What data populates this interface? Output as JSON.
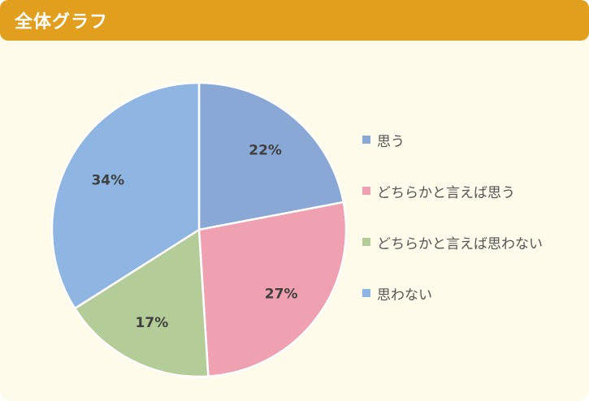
{
  "header": {
    "title": "全体グラフ"
  },
  "chart_data": {
    "type": "pie",
    "title": "",
    "categories": [
      "思う",
      "どちらかと言えば思う",
      "どちらかと言えば思わない",
      "思わない"
    ],
    "values": [
      22,
      27,
      17,
      34
    ],
    "labels": [
      "22%",
      "27%",
      "17%",
      "34%"
    ],
    "colors": [
      "#8aa8d6",
      "#f0a1b1",
      "#b4cd98",
      "#8fb5e3"
    ],
    "legend_placement": "right"
  }
}
